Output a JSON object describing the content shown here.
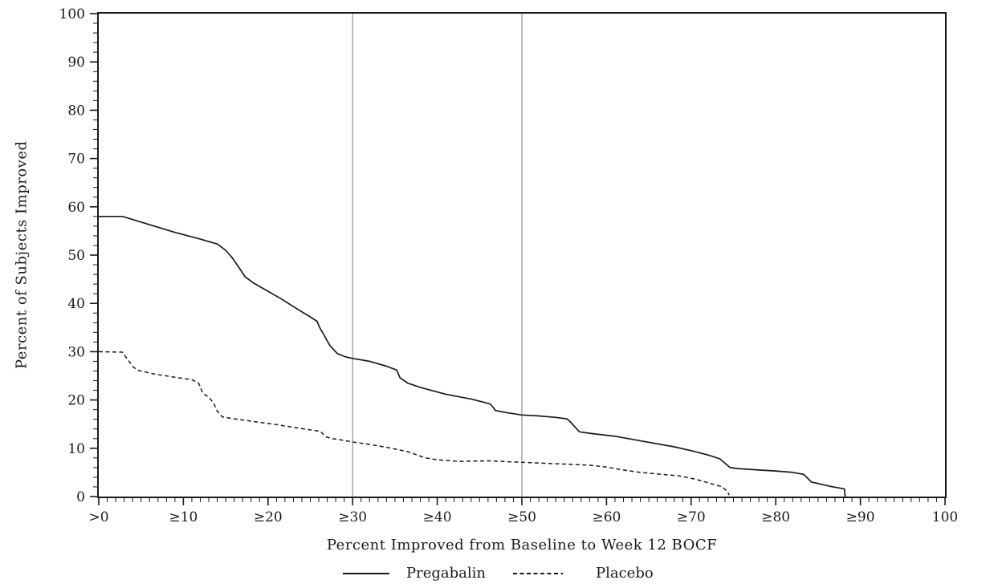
{
  "figure": {
    "background": "#ffffff",
    "ink_color": "#1a1a1a",
    "reference_line_color": "#8f8f8f"
  },
  "chart_data": {
    "type": "line",
    "title": "",
    "xlabel": "Percent Improved from Baseline to Week 12 BOCF",
    "ylabel": "Percent of Subjects Improved",
    "xlim": [
      0,
      100
    ],
    "ylim": [
      0,
      100
    ],
    "grid": "off",
    "legend_position": "bottom",
    "x_tick_values": [
      0,
      10,
      20,
      30,
      40,
      50,
      60,
      70,
      80,
      90,
      100
    ],
    "x_tick_labels": [
      ">0",
      "≥10",
      "≥20",
      "≥30",
      "≥40",
      "≥50",
      "≥60",
      "≥70",
      "≥80",
      "≥90",
      "100"
    ],
    "y_tick_values": [
      0,
      10,
      20,
      30,
      40,
      50,
      60,
      70,
      80,
      90,
      100
    ],
    "y_tick_labels": [
      "0",
      "10",
      "20",
      "30",
      "40",
      "50",
      "60",
      "70",
      "80",
      "90",
      "100"
    ],
    "minor_tick_step_x": 1,
    "minor_tick_step_y": 2,
    "reference_lines_x": [
      30,
      50
    ],
    "series": [
      {
        "name": "Pregabalin",
        "style": "solid",
        "points": [
          [
            0,
            58
          ],
          [
            2.8,
            58
          ],
          [
            6,
            56.3
          ],
          [
            9,
            54.7
          ],
          [
            12,
            53.3
          ],
          [
            14,
            52.3
          ],
          [
            15,
            51
          ],
          [
            15.7,
            49.6
          ],
          [
            16.5,
            47.6
          ],
          [
            17.3,
            45.5
          ],
          [
            18.3,
            44.2
          ],
          [
            20,
            42.5
          ],
          [
            21.5,
            41
          ],
          [
            23.3,
            39
          ],
          [
            25,
            37.2
          ],
          [
            25.8,
            36.3
          ],
          [
            26.1,
            35
          ],
          [
            26.5,
            33.8
          ],
          [
            27.3,
            31.3
          ],
          [
            28.2,
            29.6
          ],
          [
            29.2,
            28.9
          ],
          [
            30,
            28.6
          ],
          [
            32,
            28
          ],
          [
            34,
            27
          ],
          [
            35.2,
            26.2
          ],
          [
            35.6,
            24.6
          ],
          [
            36.5,
            23.5
          ],
          [
            38,
            22.6
          ],
          [
            41,
            21.2
          ],
          [
            44,
            20.2
          ],
          [
            46,
            19.3
          ],
          [
            46.3,
            19.1
          ],
          [
            46.9,
            17.8
          ],
          [
            48.5,
            17.3
          ],
          [
            50,
            16.9
          ],
          [
            52,
            16.7
          ],
          [
            54,
            16.4
          ],
          [
            55.3,
            16.1
          ],
          [
            55.6,
            15.7
          ],
          [
            56.8,
            13.4
          ],
          [
            58,
            13.1
          ],
          [
            61,
            12.5
          ],
          [
            64.5,
            11.4
          ],
          [
            68,
            10.3
          ],
          [
            70,
            9.5
          ],
          [
            72,
            8.6
          ],
          [
            73.4,
            7.8
          ],
          [
            74.6,
            6
          ],
          [
            75.5,
            5.8
          ],
          [
            78,
            5.5
          ],
          [
            80,
            5.3
          ],
          [
            82,
            5
          ],
          [
            83.3,
            4.6
          ],
          [
            84.2,
            3
          ],
          [
            86.5,
            2.1
          ],
          [
            88.1,
            1.6
          ],
          [
            88.2,
            0
          ]
        ]
      },
      {
        "name": "Placebo",
        "style": "dashed",
        "points": [
          [
            0,
            30
          ],
          [
            2.8,
            29.9
          ],
          [
            3.4,
            28.4
          ],
          [
            4.1,
            26.8
          ],
          [
            4.7,
            26.1
          ],
          [
            6.5,
            25.4
          ],
          [
            9,
            24.7
          ],
          [
            11,
            24.2
          ],
          [
            11.8,
            23.5
          ],
          [
            12.3,
            21.4
          ],
          [
            13,
            20.6
          ],
          [
            13.6,
            19.3
          ],
          [
            14,
            17.7
          ],
          [
            14.6,
            16.5
          ],
          [
            16,
            16.1
          ],
          [
            18.5,
            15.5
          ],
          [
            21,
            14.9
          ],
          [
            23.5,
            14.2
          ],
          [
            26.2,
            13.5
          ],
          [
            26.8,
            12.4
          ],
          [
            27.6,
            12
          ],
          [
            28.4,
            11.8
          ],
          [
            30,
            11.3
          ],
          [
            32,
            10.8
          ],
          [
            34,
            10.2
          ],
          [
            36.5,
            9.3
          ],
          [
            38.6,
            8
          ],
          [
            40,
            7.6
          ],
          [
            42.5,
            7.3
          ],
          [
            46,
            7.4
          ],
          [
            50,
            7.1
          ],
          [
            54,
            6.8
          ],
          [
            58,
            6.5
          ],
          [
            60,
            6.1
          ],
          [
            62,
            5.5
          ],
          [
            64,
            5
          ],
          [
            66.5,
            4.6
          ],
          [
            68.5,
            4.3
          ],
          [
            70.5,
            3.6
          ],
          [
            72.5,
            2.6
          ],
          [
            73.7,
            2
          ],
          [
            74.3,
            1
          ],
          [
            74.5,
            0.3
          ]
        ]
      }
    ]
  }
}
